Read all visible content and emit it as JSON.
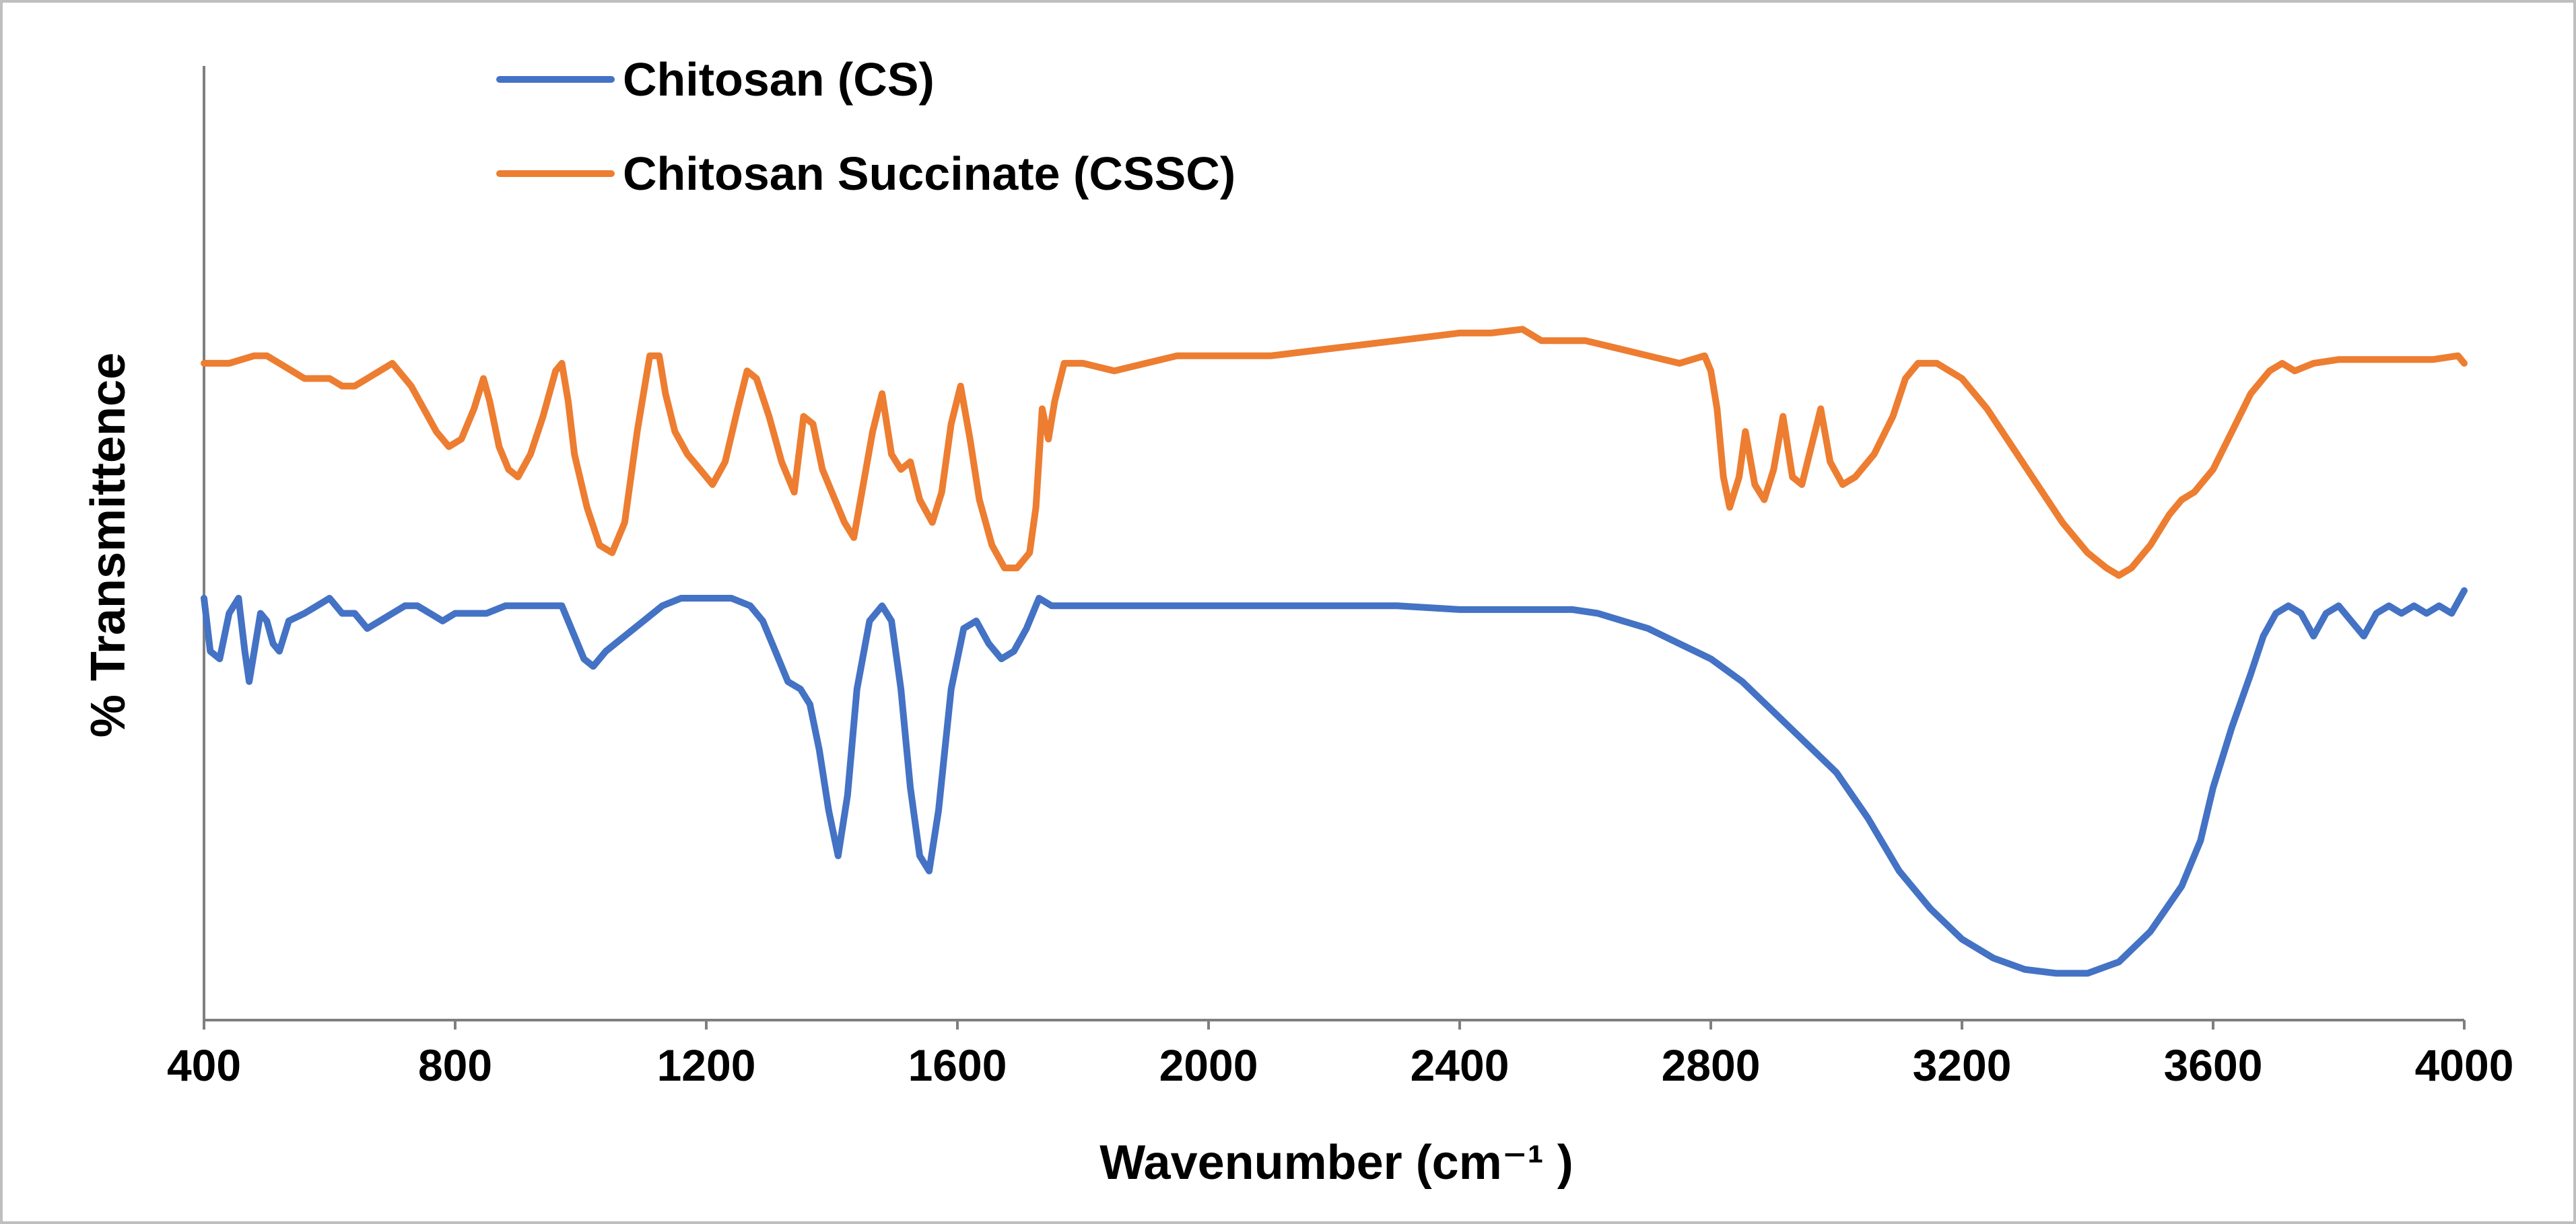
{
  "chart_data": {
    "type": "line",
    "title": "",
    "xlabel": "Wavenumber (cm⁻¹ )",
    "ylabel": "% Transmittence",
    "xlim": [
      400,
      4000
    ],
    "ylim": [
      0,
      100
    ],
    "x_ticks": [
      "400",
      "800",
      "1200",
      "1600",
      "2000",
      "2400",
      "2800",
      "3200",
      "3600",
      "4000"
    ],
    "y_ticks_shown": false,
    "grid": false,
    "legend": {
      "placement": "top-left"
    },
    "series": [
      {
        "name": "Chitosan (CS)",
        "color": "#4472C4",
        "points": [
          [
            400,
            50
          ],
          [
            410,
            43
          ],
          [
            425,
            42
          ],
          [
            440,
            48
          ],
          [
            455,
            50
          ],
          [
            465,
            43
          ],
          [
            472,
            39
          ],
          [
            480,
            43
          ],
          [
            490,
            48
          ],
          [
            500,
            47
          ],
          [
            510,
            44
          ],
          [
            520,
            43
          ],
          [
            535,
            47
          ],
          [
            560,
            48
          ],
          [
            580,
            49
          ],
          [
            600,
            50
          ],
          [
            620,
            48
          ],
          [
            640,
            48
          ],
          [
            660,
            46
          ],
          [
            680,
            47
          ],
          [
            700,
            48
          ],
          [
            720,
            49
          ],
          [
            740,
            49
          ],
          [
            760,
            48
          ],
          [
            780,
            47
          ],
          [
            800,
            48
          ],
          [
            820,
            48
          ],
          [
            850,
            48
          ],
          [
            880,
            49
          ],
          [
            920,
            49
          ],
          [
            950,
            49
          ],
          [
            970,
            49
          ],
          [
            990,
            45
          ],
          [
            1005,
            42
          ],
          [
            1020,
            41
          ],
          [
            1040,
            43
          ],
          [
            1070,
            45
          ],
          [
            1100,
            47
          ],
          [
            1130,
            49
          ],
          [
            1160,
            50
          ],
          [
            1190,
            50
          ],
          [
            1210,
            50
          ],
          [
            1240,
            50
          ],
          [
            1270,
            49
          ],
          [
            1290,
            47
          ],
          [
            1310,
            43
          ],
          [
            1330,
            39
          ],
          [
            1350,
            38
          ],
          [
            1365,
            36
          ],
          [
            1380,
            30
          ],
          [
            1395,
            22
          ],
          [
            1410,
            16
          ],
          [
            1425,
            24
          ],
          [
            1440,
            38
          ],
          [
            1460,
            47
          ],
          [
            1480,
            49
          ],
          [
            1495,
            47
          ],
          [
            1510,
            38
          ],
          [
            1525,
            25
          ],
          [
            1540,
            16
          ],
          [
            1555,
            14
          ],
          [
            1570,
            22
          ],
          [
            1590,
            38
          ],
          [
            1610,
            46
          ],
          [
            1630,
            47
          ],
          [
            1650,
            44
          ],
          [
            1670,
            42
          ],
          [
            1690,
            43
          ],
          [
            1710,
            46
          ],
          [
            1730,
            50
          ],
          [
            1750,
            49
          ],
          [
            1770,
            49
          ],
          [
            1800,
            49
          ],
          [
            1830,
            49
          ],
          [
            1860,
            49
          ],
          [
            1900,
            49
          ],
          [
            1950,
            49
          ],
          [
            2000,
            49
          ],
          [
            2050,
            49
          ],
          [
            2100,
            49
          ],
          [
            2200,
            49
          ],
          [
            2300,
            49
          ],
          [
            2400,
            48.5
          ],
          [
            2500,
            48.5
          ],
          [
            2550,
            48.5
          ],
          [
            2580,
            48.5
          ],
          [
            2620,
            48
          ],
          [
            2660,
            47
          ],
          [
            2700,
            46
          ],
          [
            2750,
            44
          ],
          [
            2800,
            42
          ],
          [
            2850,
            39
          ],
          [
            2900,
            35
          ],
          [
            2950,
            31
          ],
          [
            3000,
            27
          ],
          [
            3050,
            21
          ],
          [
            3100,
            14
          ],
          [
            3150,
            9
          ],
          [
            3200,
            5
          ],
          [
            3250,
            2.5
          ],
          [
            3300,
            1
          ],
          [
            3350,
            0.5
          ],
          [
            3400,
            0.5
          ],
          [
            3450,
            2
          ],
          [
            3500,
            6
          ],
          [
            3550,
            12
          ],
          [
            3580,
            18
          ],
          [
            3600,
            25
          ],
          [
            3630,
            33
          ],
          [
            3660,
            40
          ],
          [
            3680,
            45
          ],
          [
            3700,
            48
          ],
          [
            3720,
            49
          ],
          [
            3740,
            48
          ],
          [
            3760,
            45
          ],
          [
            3780,
            48
          ],
          [
            3800,
            49
          ],
          [
            3820,
            47
          ],
          [
            3840,
            45
          ],
          [
            3860,
            48
          ],
          [
            3880,
            49
          ],
          [
            3900,
            48
          ],
          [
            3920,
            49
          ],
          [
            3940,
            48
          ],
          [
            3960,
            49
          ],
          [
            3980,
            48
          ],
          [
            4000,
            51
          ]
        ]
      },
      {
        "name": "Chitosan Succinate (CSSC)",
        "color": "#ED7D31",
        "points": [
          [
            400,
            81
          ],
          [
            420,
            81
          ],
          [
            440,
            81
          ],
          [
            460,
            81.5
          ],
          [
            480,
            82
          ],
          [
            500,
            82
          ],
          [
            520,
            81
          ],
          [
            540,
            80
          ],
          [
            560,
            79
          ],
          [
            580,
            79
          ],
          [
            600,
            79
          ],
          [
            620,
            78
          ],
          [
            640,
            78
          ],
          [
            660,
            79
          ],
          [
            680,
            80
          ],
          [
            700,
            81
          ],
          [
            710,
            80
          ],
          [
            730,
            78
          ],
          [
            750,
            75
          ],
          [
            770,
            72
          ],
          [
            790,
            70
          ],
          [
            810,
            71
          ],
          [
            830,
            75
          ],
          [
            845,
            79
          ],
          [
            855,
            76
          ],
          [
            870,
            70
          ],
          [
            885,
            67
          ],
          [
            900,
            66
          ],
          [
            920,
            69
          ],
          [
            940,
            74
          ],
          [
            960,
            80
          ],
          [
            970,
            81
          ],
          [
            980,
            76
          ],
          [
            990,
            69
          ],
          [
            1010,
            62
          ],
          [
            1030,
            57
          ],
          [
            1050,
            56
          ],
          [
            1070,
            60
          ],
          [
            1090,
            72
          ],
          [
            1110,
            82
          ],
          [
            1125,
            82
          ],
          [
            1135,
            77
          ],
          [
            1150,
            72
          ],
          [
            1170,
            69
          ],
          [
            1190,
            67
          ],
          [
            1210,
            65
          ],
          [
            1230,
            68
          ],
          [
            1250,
            75
          ],
          [
            1265,
            80
          ],
          [
            1280,
            79
          ],
          [
            1300,
            74
          ],
          [
            1320,
            68
          ],
          [
            1340,
            64
          ],
          [
            1355,
            74
          ],
          [
            1370,
            73
          ],
          [
            1385,
            67
          ],
          [
            1400,
            64
          ],
          [
            1420,
            60
          ],
          [
            1435,
            58
          ],
          [
            1450,
            65
          ],
          [
            1465,
            72
          ],
          [
            1480,
            77
          ],
          [
            1495,
            69
          ],
          [
            1510,
            67
          ],
          [
            1525,
            68
          ],
          [
            1540,
            63
          ],
          [
            1560,
            60
          ],
          [
            1575,
            64
          ],
          [
            1590,
            73
          ],
          [
            1605,
            78
          ],
          [
            1620,
            71
          ],
          [
            1635,
            63
          ],
          [
            1655,
            57
          ],
          [
            1675,
            54
          ],
          [
            1695,
            54
          ],
          [
            1715,
            56
          ],
          [
            1725,
            62
          ],
          [
            1735,
            75
          ],
          [
            1745,
            71
          ],
          [
            1755,
            76
          ],
          [
            1770,
            81
          ],
          [
            1800,
            81
          ],
          [
            1850,
            80
          ],
          [
            1900,
            81
          ],
          [
            1950,
            82
          ],
          [
            2000,
            82
          ],
          [
            2100,
            82
          ],
          [
            2200,
            83
          ],
          [
            2300,
            84
          ],
          [
            2400,
            85
          ],
          [
            2450,
            85
          ],
          [
            2500,
            85.5
          ],
          [
            2530,
            84
          ],
          [
            2560,
            84
          ],
          [
            2600,
            84
          ],
          [
            2650,
            83
          ],
          [
            2700,
            82
          ],
          [
            2750,
            81
          ],
          [
            2790,
            82
          ],
          [
            2800,
            80
          ],
          [
            2810,
            75
          ],
          [
            2820,
            66
          ],
          [
            2830,
            62
          ],
          [
            2845,
            66
          ],
          [
            2855,
            72
          ],
          [
            2870,
            65
          ],
          [
            2885,
            63
          ],
          [
            2900,
            67
          ],
          [
            2915,
            74
          ],
          [
            2930,
            66
          ],
          [
            2945,
            65
          ],
          [
            2960,
            70
          ],
          [
            2975,
            75
          ],
          [
            2990,
            68
          ],
          [
            3010,
            65
          ],
          [
            3030,
            66
          ],
          [
            3060,
            69
          ],
          [
            3090,
            74
          ],
          [
            3110,
            79
          ],
          [
            3130,
            81
          ],
          [
            3160,
            81
          ],
          [
            3200,
            79
          ],
          [
            3240,
            75
          ],
          [
            3280,
            70
          ],
          [
            3320,
            65
          ],
          [
            3360,
            60
          ],
          [
            3400,
            56
          ],
          [
            3430,
            54
          ],
          [
            3450,
            53
          ],
          [
            3470,
            54
          ],
          [
            3500,
            57
          ],
          [
            3530,
            61
          ],
          [
            3550,
            63
          ],
          [
            3570,
            64
          ],
          [
            3600,
            67
          ],
          [
            3630,
            72
          ],
          [
            3660,
            77
          ],
          [
            3690,
            80
          ],
          [
            3710,
            81
          ],
          [
            3730,
            80
          ],
          [
            3760,
            81
          ],
          [
            3800,
            81.5
          ],
          [
            3850,
            81.5
          ],
          [
            3900,
            81.5
          ],
          [
            3950,
            81.5
          ],
          [
            3990,
            82
          ],
          [
            4000,
            81
          ]
        ]
      }
    ]
  }
}
